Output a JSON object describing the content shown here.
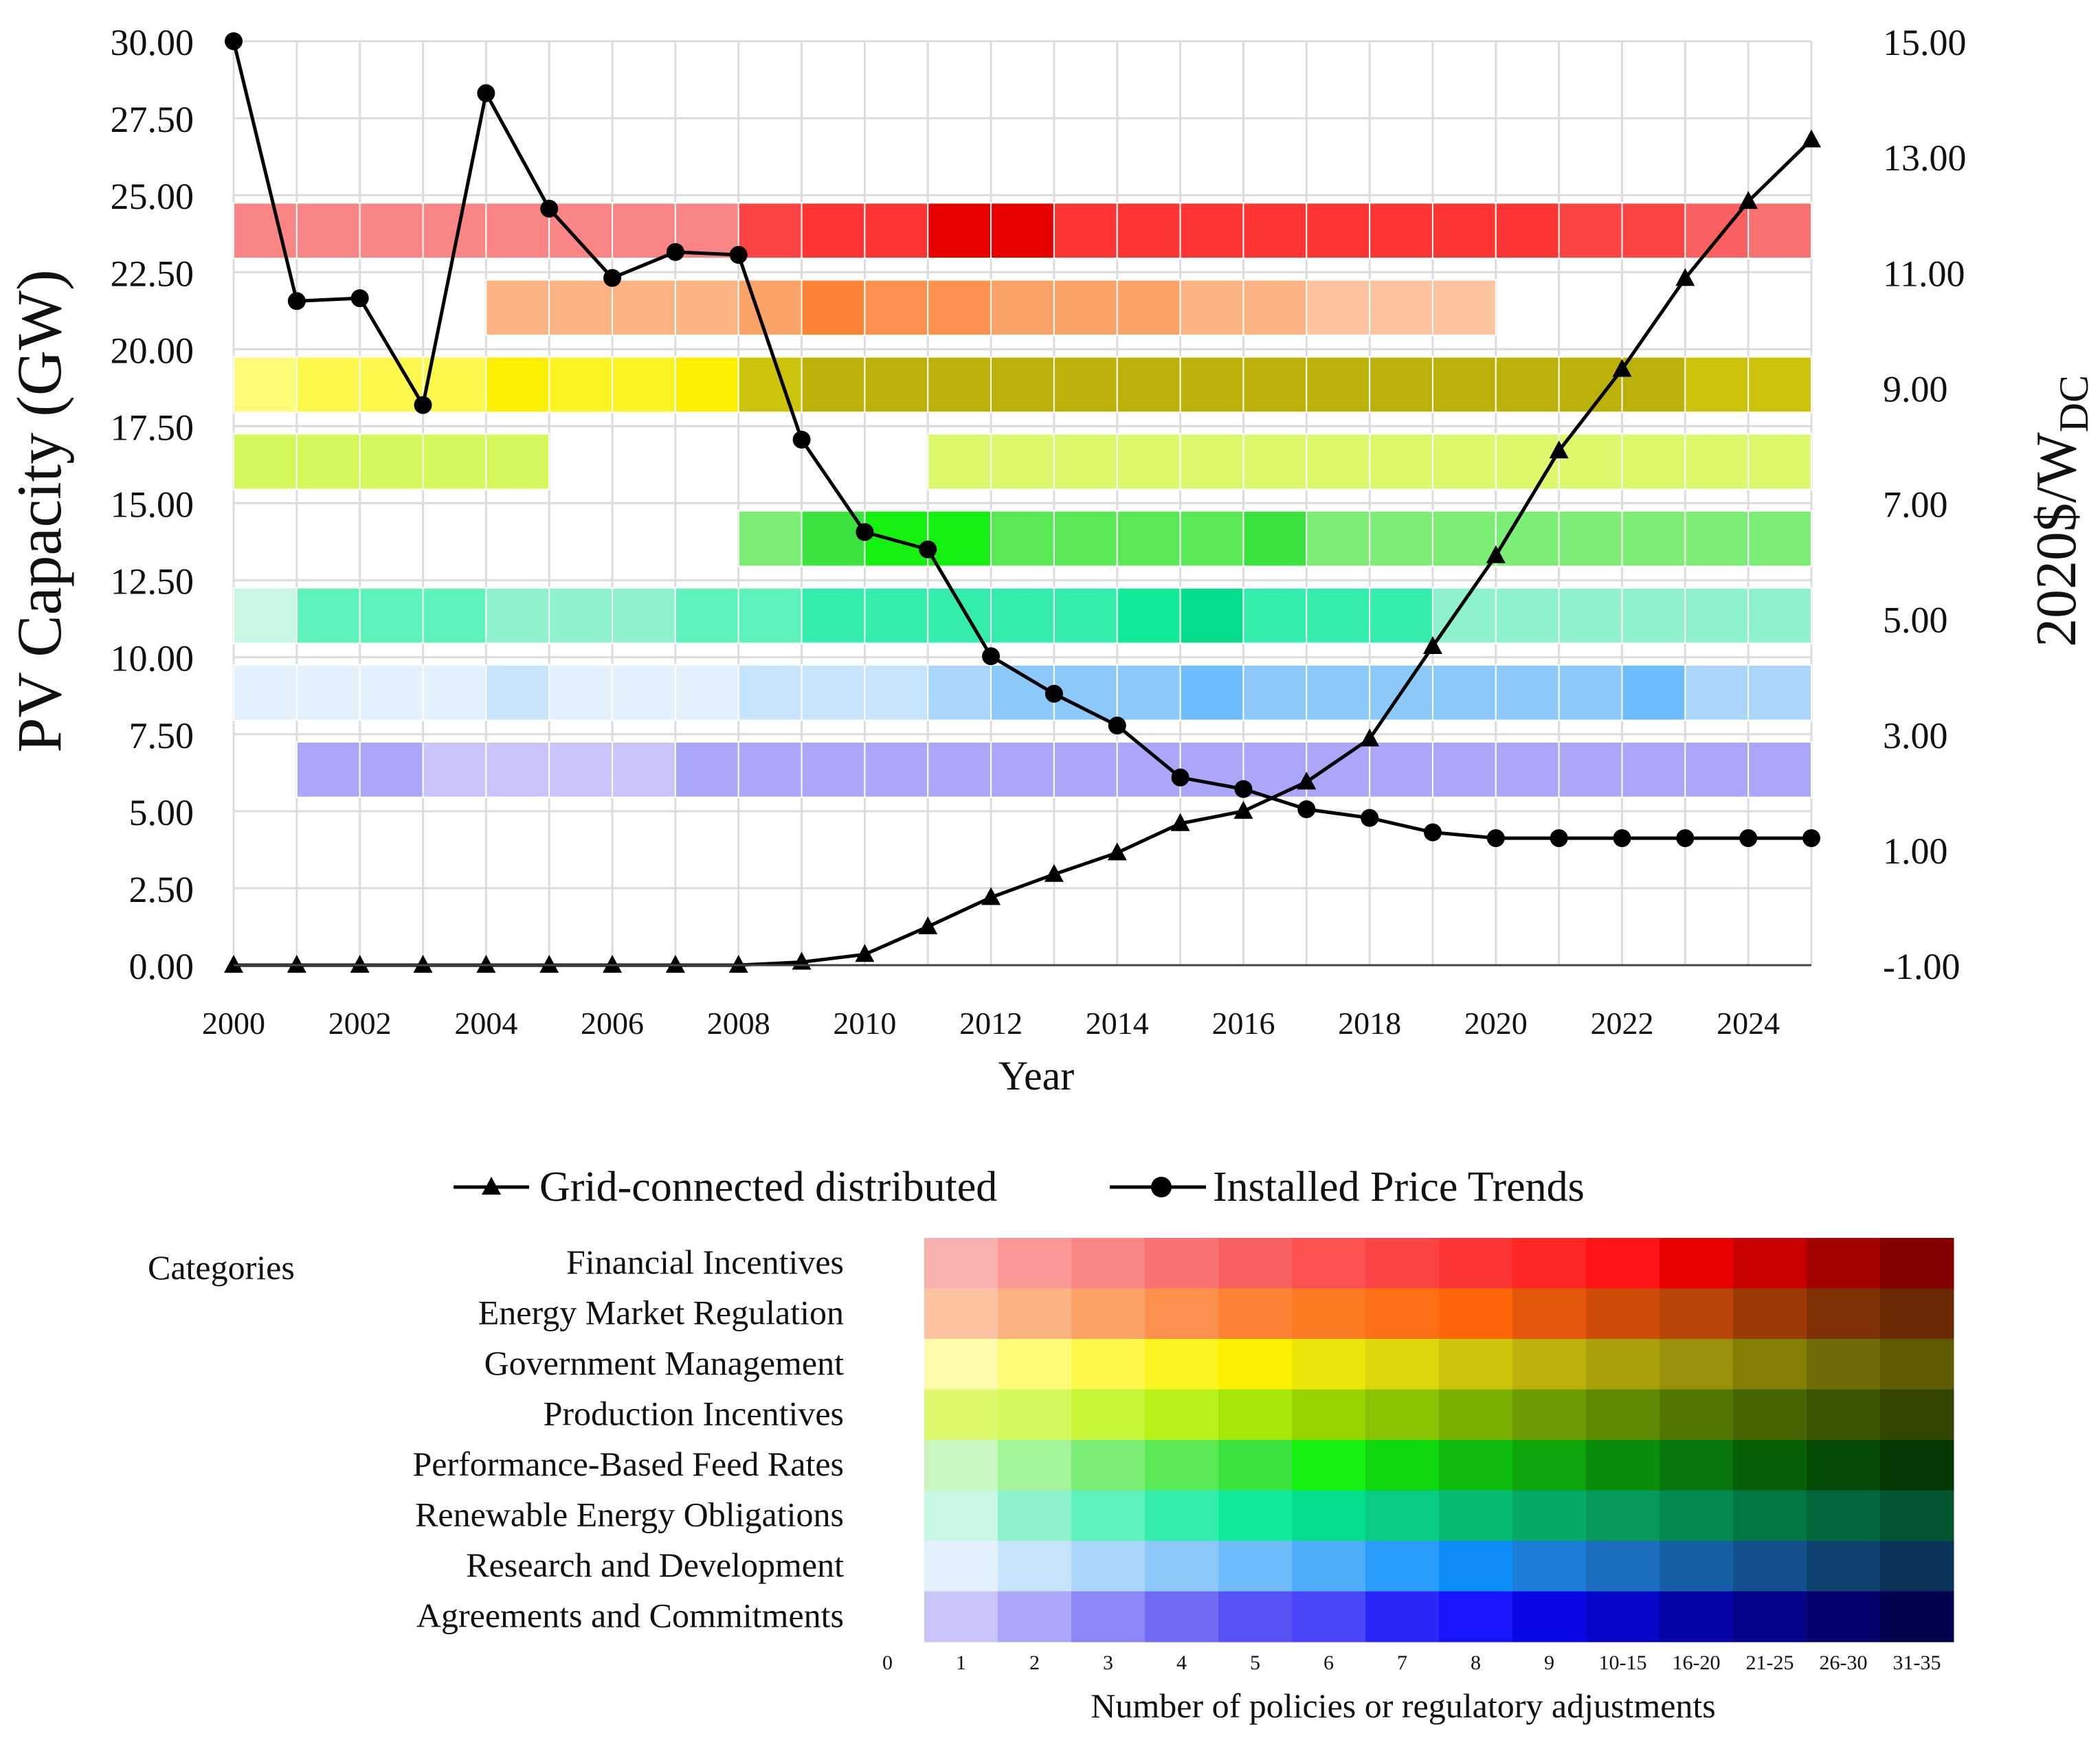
{
  "chart_data": {
    "type": "line",
    "xlabel": "Year",
    "ylabel_left": "PV Capacity (GW)",
    "ylabel_right_main": "2020$/W",
    "ylabel_right_sub": "DC",
    "x": [
      2000,
      2001,
      2002,
      2003,
      2004,
      2005,
      2006,
      2007,
      2008,
      2009,
      2010,
      2011,
      2012,
      2013,
      2014,
      2015,
      2016,
      2017,
      2018,
      2019,
      2020,
      2021,
      2022,
      2023,
      2024,
      2025
    ],
    "x_ticks": [
      "2000",
      "2002",
      "2004",
      "2006",
      "2008",
      "2010",
      "2012",
      "2014",
      "2016",
      "2018",
      "2020",
      "2022",
      "2024"
    ],
    "y_left_ticks": [
      "0.00",
      "2.50",
      "5.00",
      "7.50",
      "10.00",
      "12.50",
      "15.00",
      "17.50",
      "20.00",
      "22.50",
      "25.00",
      "27.50",
      "30.00"
    ],
    "y_right_ticks": [
      "-1.00",
      "1.00",
      "3.00",
      "5.00",
      "7.00",
      "9.00",
      "11.00",
      "13.00",
      "15.00"
    ],
    "ylim_left": [
      0,
      30
    ],
    "ylim_right": [
      -1,
      15
    ],
    "series": [
      {
        "name": "Grid-connected distributed",
        "axis": "left",
        "marker": "triangle",
        "values": [
          0,
          0,
          0,
          0,
          0,
          0,
          0,
          0,
          0,
          0.1,
          0.35,
          1.25,
          2.2,
          2.95,
          3.65,
          4.6,
          5.0,
          5.95,
          7.35,
          10.35,
          13.3,
          16.7,
          19.35,
          22.3,
          24.8,
          26.8
        ]
      },
      {
        "name": "Installed Price Trends",
        "axis": "right",
        "marker": "circle",
        "values": [
          15.0,
          10.5,
          10.55,
          8.7,
          14.1,
          12.1,
          10.9,
          11.35,
          11.3,
          8.1,
          6.5,
          6.2,
          4.35,
          3.7,
          3.15,
          2.25,
          2.05,
          1.7,
          1.55,
          1.3,
          1.2,
          1.2,
          1.2,
          1.2,
          1.2,
          1.2
        ]
      }
    ],
    "policy_rows": [
      {
        "category": "Financial Incentives",
        "start": 2000,
        "levels": [
          3,
          3,
          3,
          3,
          3,
          3,
          3,
          3,
          7,
          8,
          8,
          11,
          11,
          8,
          8,
          8,
          8,
          8,
          8,
          8,
          8,
          7,
          7,
          5,
          4
        ]
      },
      {
        "category": "Energy Market Regulation",
        "start": 2004,
        "levels": [
          2,
          2,
          2,
          2,
          3,
          5,
          4,
          4,
          3,
          3,
          3,
          2,
          2,
          1,
          1,
          1
        ]
      },
      {
        "category": "Government Management",
        "start": 2000,
        "levels": [
          2,
          3,
          3,
          3,
          5,
          4,
          4,
          5,
          8,
          9,
          9,
          9,
          9,
          9,
          9,
          9,
          9,
          9,
          9,
          9,
          9,
          9,
          9,
          8,
          8
        ]
      },
      {
        "category": "Production Incentives",
        "start": 2000,
        "levels": [
          2,
          2,
          2,
          2,
          2,
          0,
          0,
          0,
          0,
          0,
          0,
          1,
          1,
          1,
          1,
          1,
          1,
          1,
          1,
          1,
          1,
          1,
          1,
          1,
          1
        ]
      },
      {
        "category": "Performance-Based Feed Rates",
        "start": 2008,
        "levels": [
          3,
          5,
          6,
          6,
          4,
          4,
          4,
          4,
          5,
          3,
          3,
          3,
          3,
          3,
          3,
          3,
          3
        ]
      },
      {
        "category": "Renewable Energy Obligations",
        "start": 2000,
        "levels": [
          1,
          3,
          3,
          3,
          2,
          2,
          2,
          3,
          3,
          4,
          4,
          4,
          4,
          4,
          5,
          6,
          4,
          4,
          4,
          2,
          2,
          2,
          2,
          2,
          2
        ]
      },
      {
        "category": "Research and Development",
        "start": 2000,
        "levels": [
          1,
          1,
          1,
          1,
          2,
          1,
          1,
          1,
          2,
          2,
          2,
          3,
          4,
          4,
          4,
          5,
          4,
          4,
          4,
          4,
          4,
          4,
          5,
          3,
          3
        ]
      },
      {
        "category": "Agreements and Commitments",
        "start": 2001,
        "levels": [
          2,
          2,
          1,
          1,
          1,
          1,
          2,
          2,
          2,
          2,
          2,
          2,
          2,
          2,
          2,
          2,
          2,
          2,
          2,
          2,
          2,
          2,
          2,
          2
        ]
      }
    ],
    "color_scale": {
      "label": "Number of policies or regulatory adjustments",
      "title": "Categories",
      "bins": [
        "0",
        "1",
        "2",
        "3",
        "4",
        "5",
        "6",
        "7",
        "8",
        "9",
        "10-15",
        "16-20",
        "21-25",
        "26-30",
        "31-35"
      ],
      "rows": [
        {
          "category": "Financial Incentives",
          "colors": [
            "#fbb0b0",
            "#fa9898",
            "#f98585",
            "#f97272",
            "#fa6060",
            "#fb5050",
            "#fc4343",
            "#fd3434",
            "#fe2525",
            "#ff1515",
            "#e80000",
            "#c80000",
            "#a40000",
            "#820000"
          ]
        },
        {
          "category": "Energy Market Regulation",
          "colors": [
            "#fcc3a0",
            "#fbb384",
            "#fba268",
            "#fb914c",
            "#fb8333",
            "#fc7a22",
            "#fd6f14",
            "#fe6506",
            "#e4560a",
            "#cc4c08",
            "#b84407",
            "#9c3a05",
            "#7f3004",
            "#6a2803"
          ]
        },
        {
          "category": "Government Management",
          "colors": [
            "#fefcaa",
            "#fefb78",
            "#fdf84c",
            "#fcf421",
            "#fcf000",
            "#ede40a",
            "#dcd70c",
            "#cdc30a",
            "#bcb109",
            "#a9a009",
            "#979008",
            "#837e06",
            "#706c05",
            "#5e5b04"
          ]
        },
        {
          "category": "Production Incentives",
          "colors": [
            "#dcf96e",
            "#d3f85a",
            "#c6f535",
            "#b9f21a",
            "#a7e508",
            "#99d300",
            "#89c200",
            "#7bb000",
            "#6c9c02",
            "#5f8a02",
            "#537802",
            "#476602",
            "#3c5602",
            "#324602"
          ]
        },
        {
          "category": "Performance-Based Feed Rates",
          "colors": [
            "#c8f8c0",
            "#a4f49a",
            "#7cee75",
            "#59e957",
            "#3ce33e",
            "#14f010",
            "#0dd60c",
            "#0ebc0e",
            "#0ca50c",
            "#0a8d0b",
            "#08760a",
            "#066008",
            "#044b06",
            "#033804"
          ]
        },
        {
          "category": "Renewable Energy Obligations",
          "colors": [
            "#c8f8e3",
            "#8ef3cd",
            "#5ef2bb",
            "#33edab",
            "#11ea99",
            "#05dd8d",
            "#08cc80",
            "#06bb72",
            "#05aa66",
            "#059a5b",
            "#048a50",
            "#037845",
            "#02673a",
            "#025630"
          ]
        },
        {
          "category": "Research and Development",
          "colors": [
            "#e2f1fc",
            "#c6e4fb",
            "#a9d6fa",
            "#8cc8f9",
            "#6ebcf9",
            "#4eaefa",
            "#2a9cfa",
            "#0c8df8",
            "#1c7dd8",
            "#1a6ebd",
            "#165fa4",
            "#124f8b",
            "#0e4070",
            "#0a3157"
          ]
        },
        {
          "category": "Agreements and Commitments",
          "colors": [
            "#c9c5fb",
            "#aaa6f9",
            "#8c86f6",
            "#706af5",
            "#5752f4",
            "#4a46f8",
            "#2a26fa",
            "#1715fb",
            "#0a07e6",
            "#0705c8",
            "#0604a6",
            "#05038a",
            "#04026c",
            "#030250"
          ]
        }
      ]
    }
  }
}
